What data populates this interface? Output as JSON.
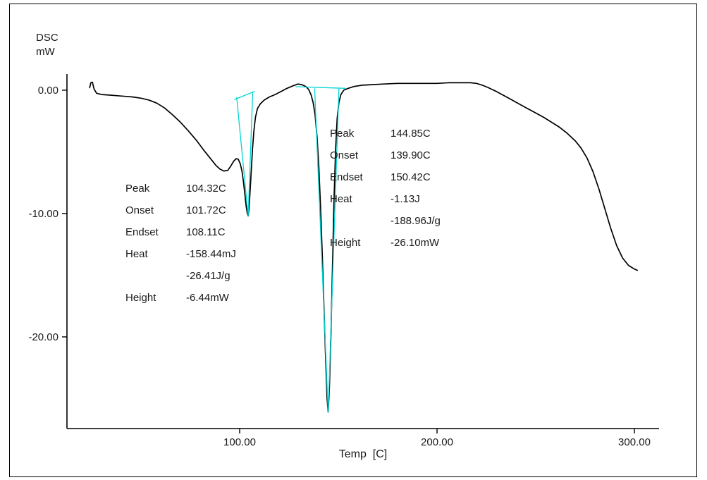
{
  "chart_data": {
    "type": "line",
    "title": "",
    "xlabel": "Temp  [C]",
    "ylabel_lines": [
      "DSC",
      "mW"
    ],
    "xlim": [
      12.5,
      312.5
    ],
    "ylim": [
      -27.43,
      1.31
    ],
    "grid": false,
    "legend": "none",
    "xticks": [
      {
        "label": "100.00",
        "value": 100
      },
      {
        "label": "200.00",
        "value": 200
      },
      {
        "label": "300.00",
        "value": 300
      }
    ],
    "yticks": [
      {
        "label": "0.00",
        "value": 0
      },
      {
        "label": "-10.00",
        "value": -10
      },
      {
        "label": "-20.00",
        "value": -20
      }
    ],
    "series": [
      {
        "name": "dsc-curve",
        "color": "#000000",
        "width": 1.7,
        "points": [
          [
            24,
            0.2
          ],
          [
            24.6,
            0.6
          ],
          [
            25.4,
            0.65
          ],
          [
            26.2,
            0.1
          ],
          [
            27.5,
            -0.25
          ],
          [
            30,
            -0.35
          ],
          [
            34,
            -0.4
          ],
          [
            38,
            -0.45
          ],
          [
            42,
            -0.5
          ],
          [
            46,
            -0.55
          ],
          [
            50,
            -0.65
          ],
          [
            54,
            -0.8
          ],
          [
            58,
            -1.05
          ],
          [
            62,
            -1.45
          ],
          [
            66,
            -2.0
          ],
          [
            70,
            -2.6
          ],
          [
            74,
            -3.3
          ],
          [
            78,
            -4.05
          ],
          [
            82,
            -4.9
          ],
          [
            85,
            -5.5
          ],
          [
            88,
            -6.1
          ],
          [
            90,
            -6.4
          ],
          [
            92,
            -6.55
          ],
          [
            94,
            -6.5
          ],
          [
            95.5,
            -6.15
          ],
          [
            97,
            -5.75
          ],
          [
            98.2,
            -5.55
          ],
          [
            99.3,
            -5.6
          ],
          [
            100.3,
            -5.95
          ],
          [
            101.2,
            -6.6
          ],
          [
            101.9,
            -7.4
          ],
          [
            102.6,
            -8.4
          ],
          [
            103.3,
            -9.4
          ],
          [
            103.9,
            -10.0
          ],
          [
            104.32,
            -10.2
          ],
          [
            104.8,
            -9.5
          ],
          [
            105.3,
            -8.2
          ],
          [
            105.9,
            -6.5
          ],
          [
            106.5,
            -4.8
          ],
          [
            107.2,
            -3.3
          ],
          [
            108,
            -2.2
          ],
          [
            109,
            -1.5
          ],
          [
            110.5,
            -1.1
          ],
          [
            112.5,
            -0.8
          ],
          [
            115,
            -0.55
          ],
          [
            118,
            -0.35
          ],
          [
            121,
            -0.1
          ],
          [
            124,
            0.15
          ],
          [
            127,
            0.35
          ],
          [
            129.5,
            0.5
          ],
          [
            131.5,
            0.45
          ],
          [
            133.5,
            0.3
          ],
          [
            135,
            0.05
          ],
          [
            136.2,
            -0.4
          ],
          [
            137.2,
            -1.0
          ],
          [
            138.2,
            -2.0
          ],
          [
            139.2,
            -3.8
          ],
          [
            140.1,
            -6.2
          ],
          [
            141,
            -9.5
          ],
          [
            141.9,
            -13.5
          ],
          [
            142.8,
            -18.0
          ],
          [
            143.6,
            -22.0
          ],
          [
            144.3,
            -25.0
          ],
          [
            144.85,
            -26.1
          ],
          [
            145.5,
            -24.0
          ],
          [
            146.2,
            -20.0
          ],
          [
            147,
            -14.5
          ],
          [
            147.8,
            -9.0
          ],
          [
            148.6,
            -4.8
          ],
          [
            149.4,
            -2.3
          ],
          [
            150.3,
            -1.0
          ],
          [
            151.3,
            -0.35
          ],
          [
            152.8,
            0.0
          ],
          [
            155,
            0.15
          ],
          [
            158,
            0.3
          ],
          [
            162,
            0.4
          ],
          [
            167,
            0.45
          ],
          [
            173,
            0.5
          ],
          [
            180,
            0.55
          ],
          [
            190,
            0.55
          ],
          [
            200,
            0.55
          ],
          [
            206,
            0.6
          ],
          [
            212,
            0.6
          ],
          [
            217,
            0.6
          ],
          [
            220,
            0.55
          ],
          [
            223,
            0.4
          ],
          [
            226,
            0.2
          ],
          [
            230,
            -0.1
          ],
          [
            234,
            -0.45
          ],
          [
            238,
            -0.8
          ],
          [
            242,
            -1.15
          ],
          [
            246,
            -1.5
          ],
          [
            250,
            -1.85
          ],
          [
            254,
            -2.2
          ],
          [
            258,
            -2.6
          ],
          [
            262,
            -3.0
          ],
          [
            266,
            -3.5
          ],
          [
            270,
            -4.1
          ],
          [
            273,
            -4.7
          ],
          [
            276,
            -5.5
          ],
          [
            279,
            -6.6
          ],
          [
            282,
            -8.0
          ],
          [
            285,
            -9.6
          ],
          [
            288,
            -11.2
          ],
          [
            291,
            -12.6
          ],
          [
            294,
            -13.6
          ],
          [
            297,
            -14.2
          ],
          [
            300,
            -14.5
          ],
          [
            301.5,
            -14.6
          ]
        ]
      },
      {
        "name": "integration-baseline-peak1",
        "color": "#00d5d5",
        "width": 1.3,
        "points": [
          [
            97.5,
            -0.75
          ],
          [
            107.5,
            -0.1
          ]
        ]
      },
      {
        "name": "integration-tangent-peak1",
        "color": "#00d5d5",
        "width": 1.3,
        "points": [
          [
            98.5,
            -0.6
          ],
          [
            104.32,
            -10.2
          ],
          [
            106.6,
            -0.2
          ]
        ]
      },
      {
        "name": "integration-baseline-peak2",
        "color": "#00d5d5",
        "width": 1.3,
        "points": [
          [
            128.5,
            0.28
          ],
          [
            153.5,
            0.15
          ]
        ]
      },
      {
        "name": "integration-tangent-peak2",
        "color": "#00d5d5",
        "width": 1.3,
        "points": [
          [
            138,
            0.1
          ],
          [
            144.85,
            -26.1
          ],
          [
            150.3,
            0.1
          ]
        ]
      }
    ],
    "annotations": [
      {
        "left": 178,
        "top": 259,
        "rows": [
          {
            "label": "Peak",
            "value": "104.32C"
          },
          {
            "label": "Onset",
            "value": "101.72C"
          },
          {
            "label": "Endset",
            "value": "108.11C"
          },
          {
            "label": "Heat",
            "value": "-158.44mJ"
          },
          {
            "label": "",
            "value": "-26.41J/g"
          },
          {
            "label": "Height",
            "value": "-6.44mW"
          }
        ]
      },
      {
        "left": 468,
        "top": 181,
        "rows": [
          {
            "label": "Peak",
            "value": "144.85C"
          },
          {
            "label": "Onset",
            "value": "139.90C"
          },
          {
            "label": "Endset",
            "value": "150.42C"
          },
          {
            "label": "Heat",
            "value": "-1.13J"
          },
          {
            "label": "",
            "value": "-188.96J/g"
          },
          {
            "label": "Height",
            "value": "-26.10mW"
          }
        ]
      }
    ]
  },
  "colors": {
    "curve": "#000000",
    "integration": "#00d5d5",
    "axis": "#000000",
    "background": "#ffffff",
    "frame": "#000000"
  }
}
